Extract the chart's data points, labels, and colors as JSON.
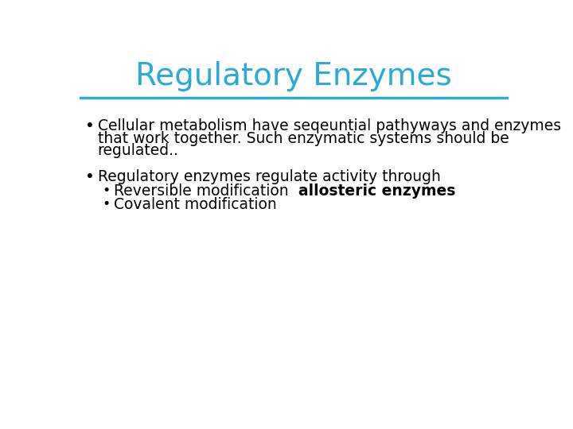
{
  "title": "Regulatory Enzymes",
  "title_color": "#29ABD4",
  "title_fontsize": 28,
  "line_color": "#29ABD4",
  "background_color": "#ffffff",
  "bullet1_line1": "Cellular metabolism have seqeuntial pathyways and enzymes",
  "bullet1_line2": "that work together. Such enzymatic systems should be",
  "bullet1_line3": "regulated..",
  "bullet2_text": "Regulatory enzymes regulate activity through",
  "sub_bullet1_normal": "Reversible modification ",
  "sub_bullet1_bold": "allosteric enzymes",
  "sub_bullet2_text": "Covalent modification",
  "text_color": "#000000",
  "text_fontsize": 13.5
}
